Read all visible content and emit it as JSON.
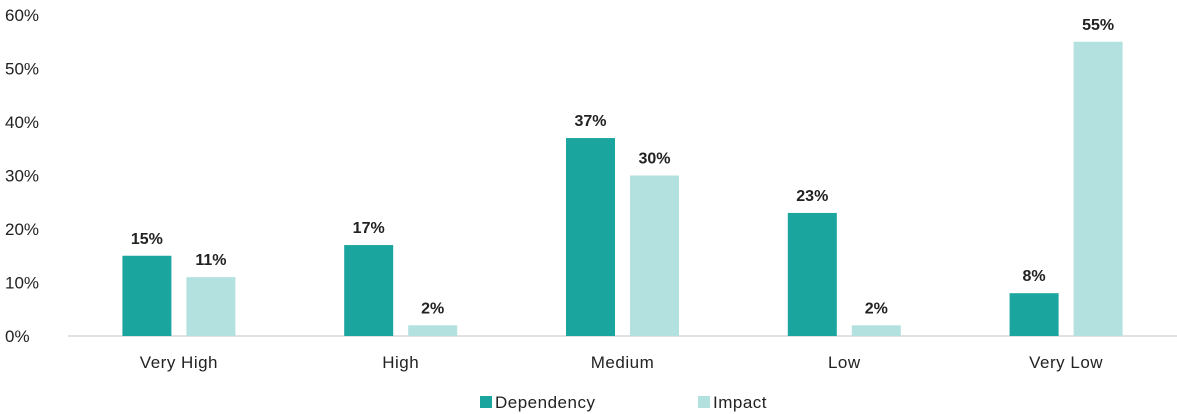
{
  "chart_data": {
    "type": "bar",
    "categories": [
      "Very High",
      "High",
      "Medium",
      "Low",
      "Very Low"
    ],
    "series": [
      {
        "name": "Dependency",
        "values": [
          15,
          17,
          37,
          23,
          8
        ],
        "color": "#1aa59f"
      },
      {
        "name": "Impact",
        "values": [
          11,
          2,
          30,
          2,
          55
        ],
        "color": "#b3e1df"
      }
    ],
    "data_labels": [
      [
        "15%",
        "17%",
        "37%",
        "23%",
        "8%"
      ],
      [
        "11%",
        "2%",
        "30%",
        "2%",
        "55%"
      ]
    ],
    "yticks": [
      0,
      10,
      20,
      30,
      40,
      50,
      60
    ],
    "ytick_labels": [
      "0%",
      "10%",
      "20%",
      "30%",
      "40%",
      "50%",
      "60%"
    ],
    "ylim": [
      0,
      60
    ],
    "legend_position": "bottom-center",
    "grid": false,
    "axis_color": "#d9d9d9"
  }
}
